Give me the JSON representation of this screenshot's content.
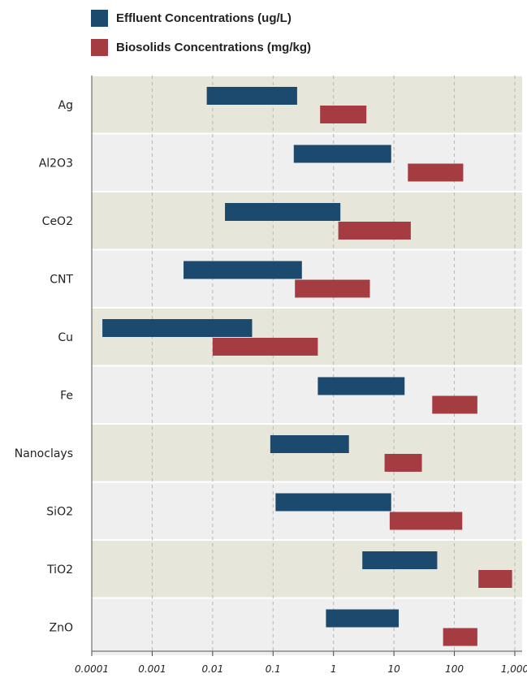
{
  "chart_data": {
    "type": "bar",
    "orientation": "horizontal-range",
    "x_scale": "log",
    "xlim": [
      0.0001,
      1000
    ],
    "x_ticks": [
      0.0001,
      0.001,
      0.01,
      0.1,
      1,
      10,
      100,
      1000
    ],
    "x_tick_labels": [
      "0.0001",
      "0.001",
      "0.01",
      "0.1",
      "1",
      "10",
      "100",
      "1,000"
    ],
    "grid": "vertical dashed",
    "legend_position": "top-left",
    "categories": [
      "Ag",
      "Al2O3",
      "CeO2",
      "CNT",
      "Cu",
      "Fe",
      "Nanoclays",
      "SiO2",
      "TiO2",
      "ZnO"
    ],
    "series": [
      {
        "name": "Effluent Concentrations (ug/L)",
        "color": "#1b4a6e",
        "ranges": [
          [
            0.008,
            0.25
          ],
          [
            0.22,
            9
          ],
          [
            0.016,
            1.3
          ],
          [
            0.0033,
            0.3
          ],
          [
            0.00015,
            0.045
          ],
          [
            0.55,
            15
          ],
          [
            0.09,
            1.8
          ],
          [
            0.11,
            9
          ],
          [
            3,
            52
          ],
          [
            0.75,
            12
          ]
        ]
      },
      {
        "name": "Biosolids Concentrations (mg/kg)",
        "color": "#a53c42",
        "ranges": [
          [
            0.6,
            3.5
          ],
          [
            17,
            140
          ],
          [
            1.2,
            19
          ],
          [
            0.23,
            4
          ],
          [
            0.01,
            0.55
          ],
          [
            43,
            240
          ],
          [
            7,
            29
          ],
          [
            8.5,
            135
          ],
          [
            250,
            900
          ],
          [
            65,
            240
          ]
        ]
      }
    ],
    "band_colors": [
      "#e6e6db",
      "#efefef"
    ]
  }
}
